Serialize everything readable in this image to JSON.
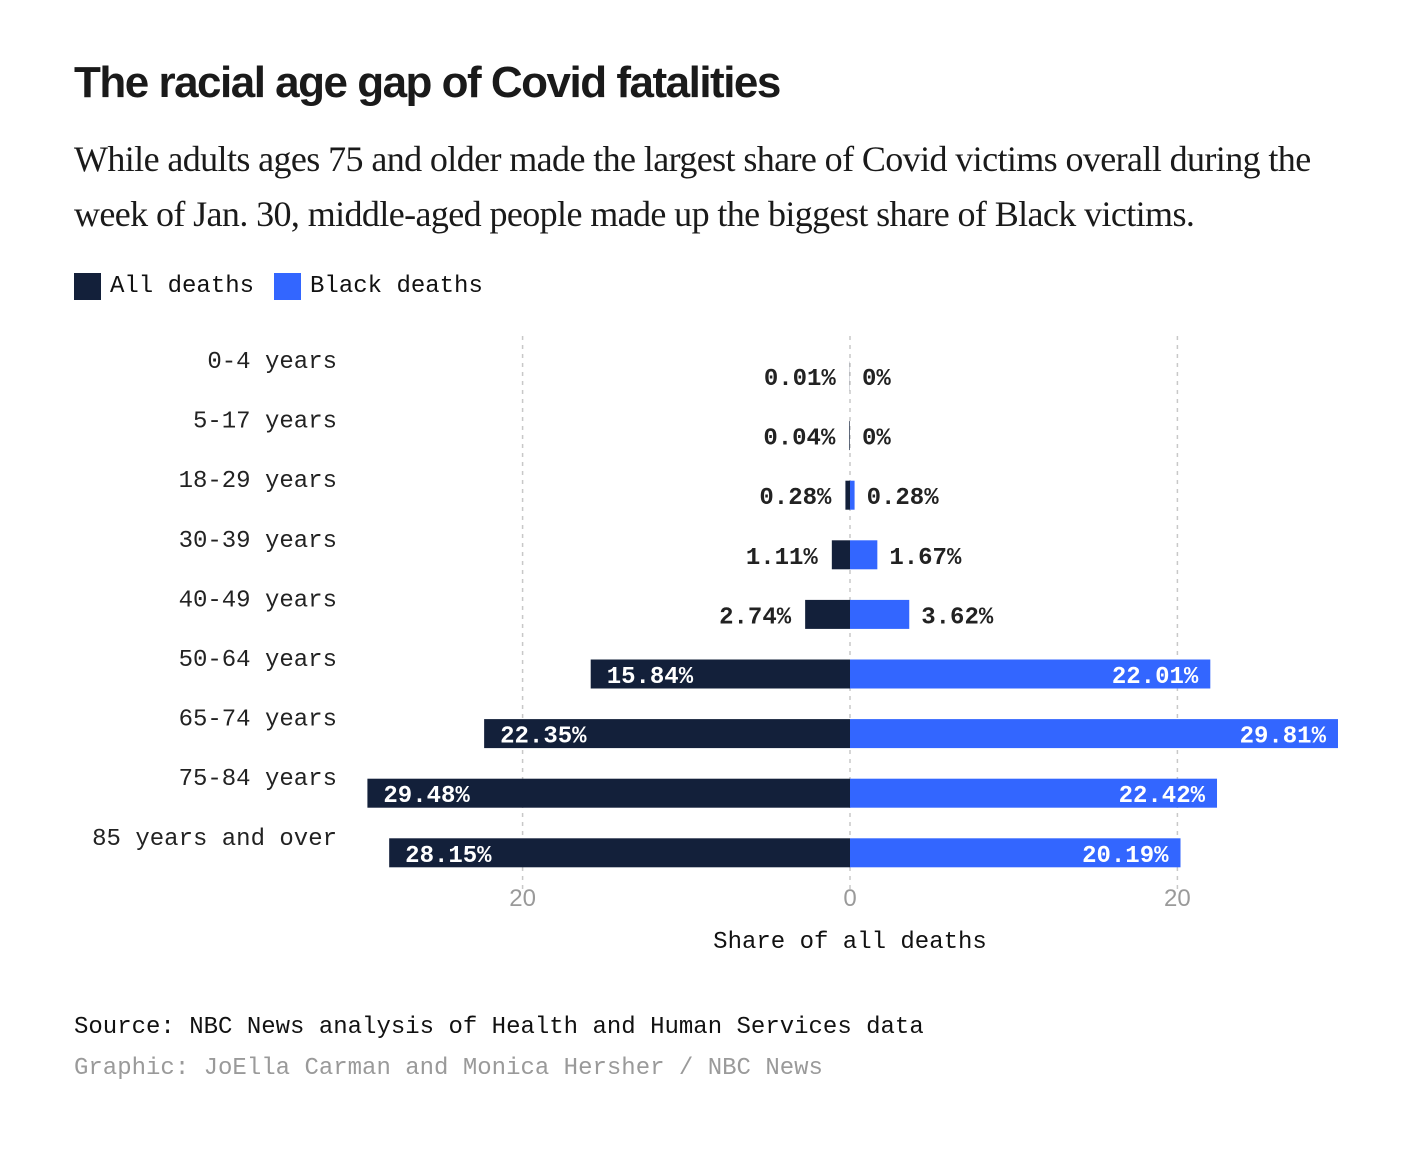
{
  "title": "The racial age gap of Covid fatalities",
  "subtitle": "While adults ages 75 and older made the largest share of Covid victims overall during the week of Jan. 30, middle-aged people made up the biggest share of Black victims.",
  "colors": {
    "all": "#13203a",
    "black": "#3366ff",
    "grid": "#c8c8c8",
    "tick": "#9a9a9a"
  },
  "chart_data": {
    "type": "bar",
    "orientation": "diverging-horizontal",
    "categories": [
      "0-4 years",
      "5-17 years",
      "18-29 years",
      "30-39 years",
      "40-49 years",
      "50-64 years",
      "65-74 years",
      "75-84 years",
      "85 years and over"
    ],
    "series": [
      {
        "name": "All deaths",
        "side": "left",
        "values": [
          0.01,
          0.04,
          0.28,
          1.11,
          2.74,
          15.84,
          22.35,
          29.48,
          28.15
        ],
        "labels": [
          "0.01%",
          "0.04%",
          "0.28%",
          "1.11%",
          "2.74%",
          "15.84%",
          "22.35%",
          "29.48%",
          "28.15%"
        ]
      },
      {
        "name": "Black deaths",
        "side": "right",
        "values": [
          0,
          0,
          0.28,
          1.67,
          3.62,
          22.01,
          29.81,
          22.42,
          20.19
        ],
        "labels": [
          "0%",
          "0%",
          "0.28%",
          "1.67%",
          "3.62%",
          "22.01%",
          "29.81%",
          "22.42%",
          "20.19%"
        ]
      }
    ],
    "xlabel": "Share of all deaths",
    "xticks": [
      20,
      0,
      20
    ],
    "xlim": [
      -30,
      30
    ],
    "grid": true,
    "legend": [
      "All deaths",
      "Black deaths"
    ],
    "legend_position": "top-left"
  },
  "source": "Source: NBC News analysis of Health and Human Services data",
  "credit": "Graphic: JoElla Carman and Monica Hersher / NBC News"
}
